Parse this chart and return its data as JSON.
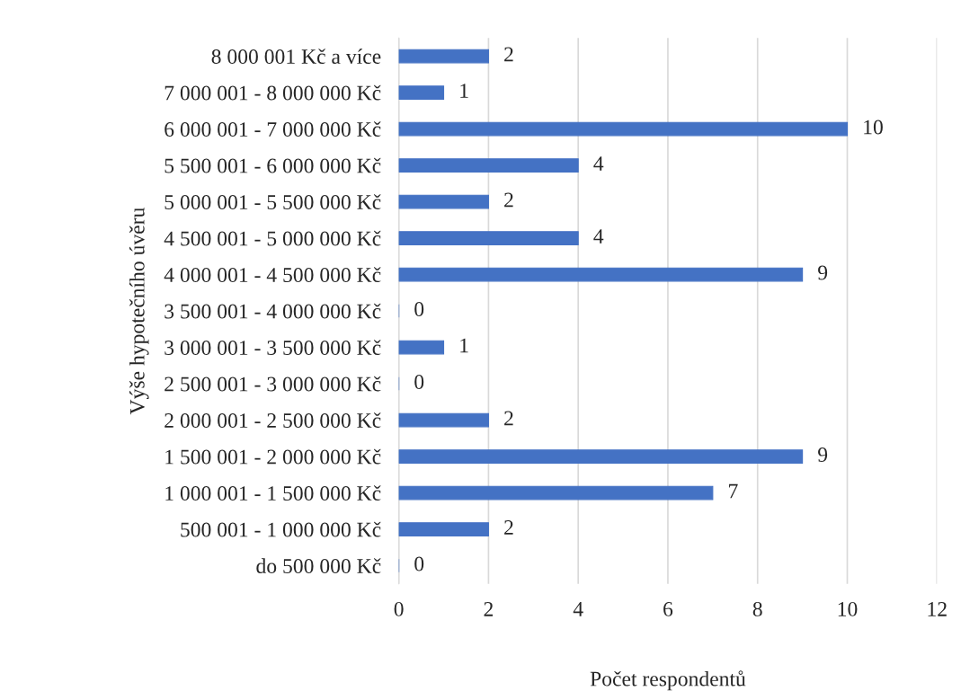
{
  "chart_data": {
    "type": "bar",
    "orientation": "horizontal",
    "xlabel": "Počet respondentů",
    "ylabel": "Výše hypotečního úvěru",
    "categories": [
      "8 000 001 Kč a více",
      "7 000 001 - 8 000 000 Kč",
      "6 000 001 - 7 000 000 Kč",
      "5 500 001 - 6 000 000 Kč",
      "5 000 001 - 5 500 000 Kč",
      "4 500 001 - 5 000 000 Kč",
      "4 000 001 - 4 500 000 Kč",
      "3 500 001 - 4 000 000 Kč",
      "3 000 001 - 3 500 000 Kč",
      "2 500 001 - 3 000 000 Kč",
      "2 000 001 - 2 500 000 Kč",
      "1 500 001 - 2 000 000 Kč",
      "1 000 001 - 1 500 000 Kč",
      "500 001 - 1 000 000 Kč",
      "do 500 000 Kč"
    ],
    "values": [
      2,
      1,
      10,
      4,
      2,
      4,
      9,
      0,
      1,
      0,
      2,
      9,
      7,
      2,
      0
    ],
    "color": "#4472c4",
    "xlim": [
      0,
      12
    ],
    "xticks": [
      0,
      2,
      4,
      6,
      8,
      10,
      12
    ],
    "grid": "x",
    "data_labels": true,
    "legend": false
  }
}
